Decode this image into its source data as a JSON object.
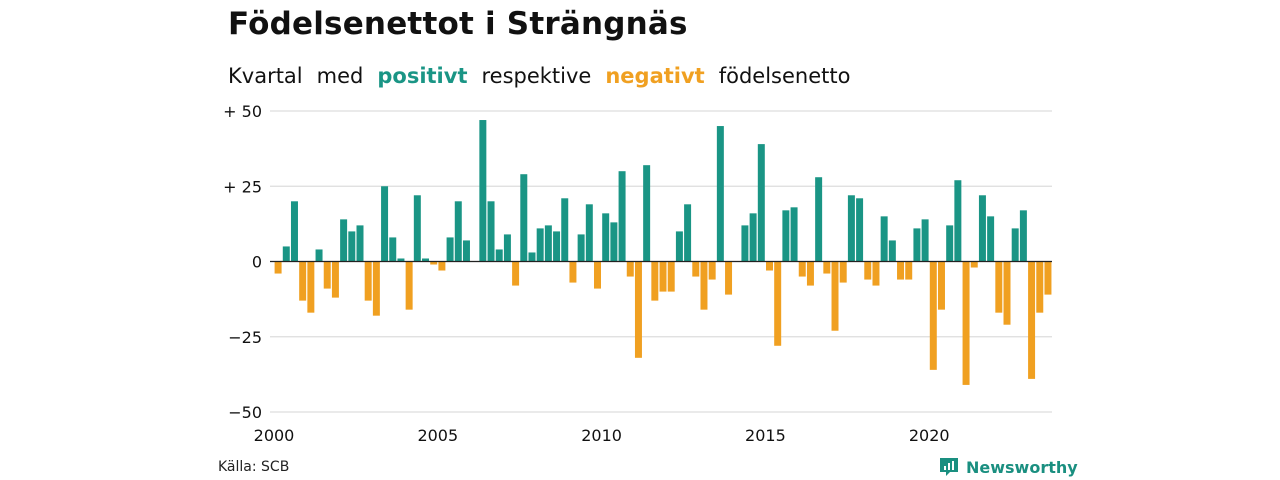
{
  "title": "Födelsenettot i Strängnäs",
  "subtitle": {
    "part1": "Kvartal",
    "part2": "med",
    "positive": "positivt",
    "part3": "respektive",
    "negative": "negativt",
    "part4": "födelsenetto"
  },
  "source": "Källa: SCB",
  "logo": {
    "text": "Newsworthy",
    "icon": "newsworthy-logo-icon"
  },
  "colors": {
    "positive": "#1a9585",
    "negative": "#f0a021",
    "grid": "#dddddd"
  },
  "chart_data": {
    "type": "bar",
    "title": "Födelsenettot i Strängnäs",
    "subtitle": "Kvartal med positivt respektive negativt födelsenetto",
    "xlabel": "",
    "ylabel": "",
    "ylim": [
      -50,
      50
    ],
    "xlim": [
      2000,
      2023.75
    ],
    "yticks": [
      {
        "value": 50,
        "label": "+ 50"
      },
      {
        "value": 25,
        "label": "+ 25"
      },
      {
        "value": 0,
        "label": "0"
      },
      {
        "value": -25,
        "label": "−25"
      },
      {
        "value": -50,
        "label": "−50"
      }
    ],
    "xticks": [
      {
        "value": 2000,
        "label": "2000"
      },
      {
        "value": 2005,
        "label": "2005"
      },
      {
        "value": 2010,
        "label": "2010"
      },
      {
        "value": 2015,
        "label": "2015"
      },
      {
        "value": 2020,
        "label": "2020"
      }
    ],
    "grid": true,
    "first_quarter": "2000 Q1",
    "values": [
      -4,
      5,
      20,
      -13,
      -17,
      4,
      -9,
      -12,
      14,
      10,
      12,
      -13,
      -18,
      25,
      8,
      1,
      -16,
      22,
      1,
      -1,
      -3,
      8,
      20,
      7,
      0,
      47,
      20,
      4,
      9,
      -8,
      29,
      3,
      11,
      12,
      10,
      21,
      -7,
      9,
      19,
      -9,
      16,
      13,
      30,
      -5,
      -32,
      32,
      -13,
      -10,
      -10,
      10,
      19,
      -5,
      -16,
      -6,
      45,
      -11,
      0,
      12,
      16,
      39,
      -3,
      -28,
      17,
      18,
      -5,
      -8,
      28,
      -4,
      -23,
      -7,
      22,
      21,
      -6,
      -8,
      15,
      7,
      -6,
      -6,
      11,
      14,
      -36,
      -16,
      12,
      27,
      -41,
      -2,
      22,
      15,
      -17,
      -21,
      11,
      17,
      -39,
      -17,
      -11
    ]
  }
}
